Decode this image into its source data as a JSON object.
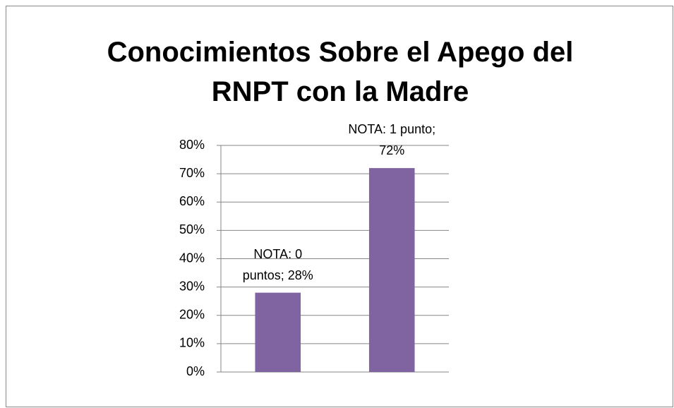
{
  "chart_data": {
    "type": "bar",
    "title": "Conocimientos Sobre el Apego del RNPT con la Madre",
    "values": [
      28,
      72
    ],
    "value_labels": [
      "NOTA: 0 puntos; 28%",
      "NOTA: 1 punto; 72%"
    ],
    "color": "#8064a2",
    "ylim": [
      0,
      80
    ],
    "yticks": [
      {
        "value": 0,
        "label": "0%"
      },
      {
        "value": 10,
        "label": "10%"
      },
      {
        "value": 20,
        "label": "20%"
      },
      {
        "value": 30,
        "label": "30%"
      },
      {
        "value": 40,
        "label": "40%"
      },
      {
        "value": 50,
        "label": "50%"
      },
      {
        "value": 60,
        "label": "60%"
      },
      {
        "value": 70,
        "label": "70%"
      },
      {
        "value": 80,
        "label": "80%"
      }
    ],
    "grid": true
  }
}
